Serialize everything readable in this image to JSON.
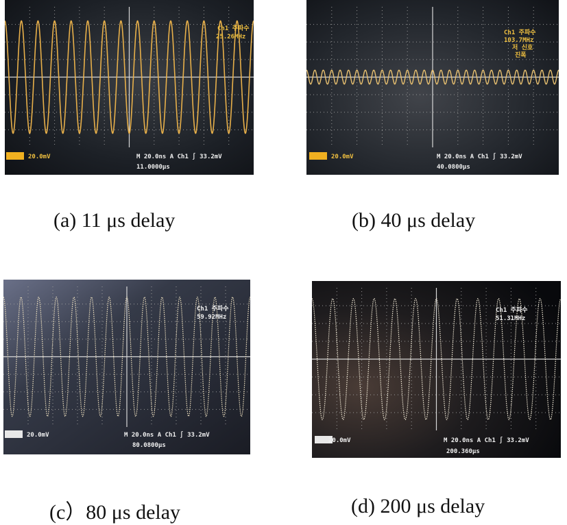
{
  "panels": [
    {
      "id": "a",
      "readout_title": "Ch1 주파수",
      "readout_value": "25.26MHz",
      "readout_extra": "",
      "ch1_scale": "20.0mV",
      "timebase": "M 20.0ns  A  Ch1  ∫  33.2mV",
      "delay": "11.0000µs",
      "caption": "(a)  11   μs  delay",
      "trace_color": "#e8b04a",
      "cycles": 15,
      "amplitude": 0.8
    },
    {
      "id": "b",
      "readout_title": "Ch1 주파수",
      "readout_value": "103.7MHz",
      "readout_extra": "저 신호",
      "readout_extra2": "진폭",
      "ch1_scale": "20.0mV",
      "timebase": "M 20.0ns  A  Ch1  ∫  33.2mV",
      "delay": "40.0800µs",
      "caption": "(b)  40   μs  delay",
      "trace_color": "#e8c070",
      "cycles": 30,
      "amplitude": 0.1
    },
    {
      "id": "c",
      "readout_title": "Ch1 주파수",
      "readout_value": "59.92MHz",
      "readout_extra": "",
      "ch1_scale": "20.0mV",
      "timebase": "M 20.0ns  A  Ch1  ∫  33.2mV",
      "delay": "80.0800µs",
      "caption": "(c）80   μs  delay",
      "trace_color": "#f0e2c0",
      "cycles": 14,
      "amplitude": 0.85
    },
    {
      "id": "d",
      "readout_title": "Ch1 주파수",
      "readout_value": "51.31MHz",
      "readout_extra": "",
      "ch1_scale": "20.0mV",
      "timebase": "M 20.0ns  A  Ch1  ∫  33.2mV",
      "delay": "200.360µs",
      "caption": "(d)  200   μs  delay",
      "trace_color": "#f4ecd8",
      "cycles": 12,
      "amplitude": 0.85
    }
  ]
}
